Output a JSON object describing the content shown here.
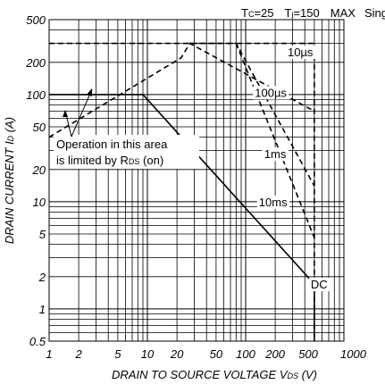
{
  "chart_data": {
    "type": "line",
    "x_scale": "log",
    "y_scale": "log",
    "xlim": [
      1,
      1000
    ],
    "ylim": [
      0.5,
      500
    ],
    "x_ticks": [
      "1",
      "2",
      "5",
      "10",
      "20",
      "50",
      "100",
      "200",
      "500",
      "1000"
    ],
    "x_tick_values": [
      1,
      2,
      5,
      10,
      20,
      50,
      100,
      200,
      500,
      1000
    ],
    "y_ticks": [
      "500",
      "200",
      "100",
      "50",
      "20",
      "10",
      "5",
      "2",
      "1",
      "0.5"
    ],
    "y_tick_values": [
      500,
      200,
      100,
      50,
      20,
      10,
      5,
      2,
      1,
      0.5
    ],
    "xlabel_main": "DRAIN TO SOURCE VOLTAGE  V",
    "xlabel_sub": "DS",
    "xlabel_unit": " (V)",
    "ylabel_main": "DRAIN CURRENT  I",
    "ylabel_sub": "D",
    "ylabel_unit": " (A)",
    "header": {
      "tc_main": "T",
      "tc_sub": "C",
      "tc_val": "=25",
      "tj_main": "T",
      "tj_sub": "j",
      "tj_val": "=150",
      "max": "MAX",
      "pulse": "Single Pulse"
    },
    "grid": true,
    "series": [
      {
        "name": "10µs",
        "style": "dashed",
        "x": [
          1,
          500,
          500
        ],
        "y": [
          300,
          300,
          0.5
        ]
      },
      {
        "name": "100µs",
        "style": "dashed",
        "x": [
          1,
          22,
          27,
          500
        ],
        "y": [
          40,
          220,
          300,
          70
        ]
      },
      {
        "name": "1ms",
        "style": "dashed",
        "x": [
          27,
          80,
          500
        ],
        "y": [
          300,
          300,
          14
        ]
      },
      {
        "name": "10ms",
        "style": "dashed",
        "x": [
          80,
          500
        ],
        "y": [
          300,
          4.6
        ]
      },
      {
        "name": "DC",
        "style": "solid",
        "x": [
          1,
          9,
          500,
          500
        ],
        "y": [
          100,
          100,
          1.7,
          0.5
        ]
      }
    ],
    "series_labels": [
      {
        "text": "10µs",
        "x": 360,
        "y": 250
      },
      {
        "text": "100µs",
        "x": 180,
        "y": 105
      },
      {
        "text": "1ms",
        "x": 200,
        "y": 28
      },
      {
        "text": "10ms",
        "x": 190,
        "y": 10
      },
      {
        "text": "DC",
        "x": 560,
        "y": 1.7
      }
    ],
    "annotation": {
      "line1": "Operation in this area",
      "line2_main": "is limited by R",
      "line2_sub": "DS",
      "line2_unit": " (on)"
    }
  }
}
